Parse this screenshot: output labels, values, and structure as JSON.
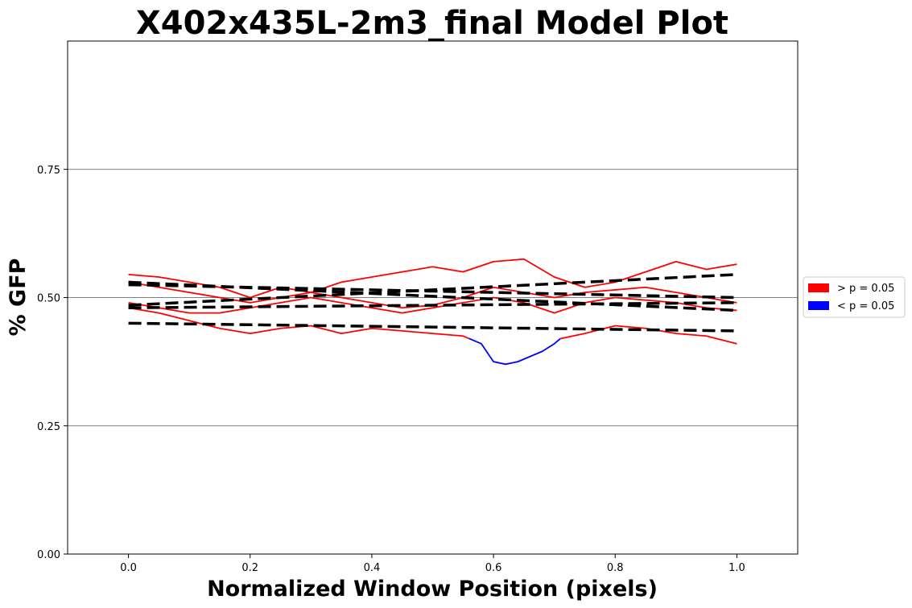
{
  "chart_data": {
    "type": "line",
    "title": "X402x435L-2m3_final Model Plot",
    "xlabel": "Normalized Window Position (pixels)",
    "ylabel": "% GFP",
    "xlim": [
      -0.1,
      1.1
    ],
    "ylim": [
      0.0,
      1.0
    ],
    "xticks": [
      0.0,
      0.2,
      0.4,
      0.6,
      0.8,
      1.0
    ],
    "xtick_labels": [
      "0.0",
      "0.2",
      "0.4",
      "0.6",
      "0.8",
      "1.0"
    ],
    "yticks": [
      0.0,
      0.25,
      0.5,
      0.75
    ],
    "ytick_labels": [
      "0.00",
      "0.25",
      "0.50",
      "0.75"
    ],
    "grid": "horizontal at y ticks",
    "legend": {
      "placement": "outside-right-center",
      "entries": [
        {
          "label": "> p = 0.05",
          "color": "#ff0000"
        },
        {
          "label": "< p = 0.05",
          "color": "#0000ff"
        }
      ]
    },
    "colors": {
      "not_significant": "#ff0000",
      "significant": "#0000ff",
      "model": "#000000",
      "grid": "#808080"
    },
    "series": [
      {
        "kind": "observed",
        "x": [
          0.0,
          0.05,
          0.1,
          0.15,
          0.2,
          0.25,
          0.3,
          0.35,
          0.4,
          0.45,
          0.5,
          0.55,
          0.6,
          0.65,
          0.7,
          0.75,
          0.8,
          0.85,
          0.9,
          0.95,
          1.0
        ],
        "y": [
          0.545,
          0.54,
          0.53,
          0.52,
          0.5,
          0.52,
          0.51,
          0.5,
          0.49,
          0.48,
          0.485,
          0.5,
          0.52,
          0.51,
          0.5,
          0.51,
          0.515,
          0.52,
          0.51,
          0.5,
          0.49
        ],
        "significant": []
      },
      {
        "kind": "observed",
        "x": [
          0.0,
          0.05,
          0.1,
          0.15,
          0.2,
          0.25,
          0.3,
          0.35,
          0.4,
          0.45,
          0.5,
          0.55,
          0.6,
          0.65,
          0.7,
          0.75,
          0.8,
          0.85,
          0.9,
          0.95,
          1.0
        ],
        "y": [
          0.53,
          0.52,
          0.51,
          0.5,
          0.49,
          0.5,
          0.51,
          0.53,
          0.54,
          0.55,
          0.56,
          0.55,
          0.57,
          0.575,
          0.54,
          0.52,
          0.53,
          0.55,
          0.57,
          0.555,
          0.565
        ],
        "significant": []
      },
      {
        "kind": "observed",
        "x": [
          0.0,
          0.05,
          0.1,
          0.15,
          0.2,
          0.25,
          0.3,
          0.35,
          0.4,
          0.45,
          0.5,
          0.55,
          0.6,
          0.65,
          0.7,
          0.75,
          0.8,
          0.85,
          0.9,
          0.95,
          1.0
        ],
        "y": [
          0.49,
          0.48,
          0.47,
          0.47,
          0.48,
          0.49,
          0.5,
          0.49,
          0.48,
          0.47,
          0.48,
          0.49,
          0.5,
          0.49,
          0.47,
          0.49,
          0.5,
          0.495,
          0.49,
          0.48,
          0.475
        ],
        "significant": []
      },
      {
        "kind": "observed",
        "x": [
          0.0,
          0.05,
          0.1,
          0.15,
          0.2,
          0.25,
          0.3,
          0.35,
          0.4,
          0.45,
          0.5,
          0.55,
          0.56,
          0.58,
          0.6,
          0.62,
          0.64,
          0.66,
          0.68,
          0.7,
          0.71,
          0.75,
          0.8,
          0.85,
          0.9,
          0.95,
          1.0
        ],
        "y": [
          0.48,
          0.47,
          0.455,
          0.44,
          0.43,
          0.44,
          0.445,
          0.43,
          0.44,
          0.435,
          0.43,
          0.425,
          0.42,
          0.41,
          0.375,
          0.37,
          0.375,
          0.385,
          0.395,
          0.41,
          0.42,
          0.43,
          0.445,
          0.44,
          0.43,
          0.425,
          0.41
        ],
        "significant": [
          false,
          false,
          false,
          false,
          false,
          false,
          false,
          false,
          false,
          false,
          false,
          false,
          true,
          true,
          true,
          true,
          true,
          true,
          true,
          true,
          false,
          false,
          false,
          false,
          false,
          false,
          false
        ]
      },
      {
        "kind": "model",
        "x": [
          0.0,
          1.0
        ],
        "y": [
          0.53,
          0.475
        ]
      },
      {
        "kind": "model",
        "x": [
          0.0,
          1.0
        ],
        "y": [
          0.525,
          0.5
        ]
      },
      {
        "kind": "model",
        "x": [
          0.0,
          1.0
        ],
        "y": [
          0.485,
          0.545
        ]
      },
      {
        "kind": "model",
        "x": [
          0.0,
          1.0
        ],
        "y": [
          0.48,
          0.49
        ]
      },
      {
        "kind": "model",
        "x": [
          0.0,
          1.0
        ],
        "y": [
          0.45,
          0.435
        ]
      }
    ]
  }
}
